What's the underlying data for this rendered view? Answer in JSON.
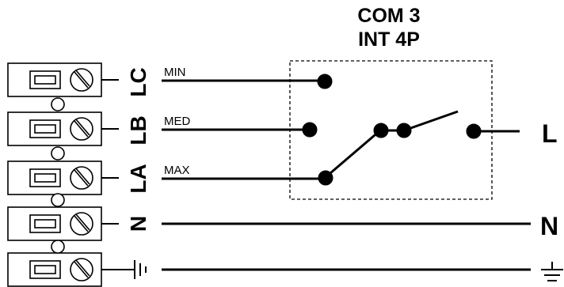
{
  "title": {
    "line1": "COM 3",
    "line2": "INT 4P"
  },
  "terminals": [
    {
      "label": "LC",
      "speed": "MIN"
    },
    {
      "label": "LB",
      "speed": "MED"
    },
    {
      "label": "LA",
      "speed": "MAX"
    },
    {
      "label": "N"
    },
    {
      "label": ""
    }
  ],
  "outputs": {
    "line": "L",
    "neutral": "N"
  },
  "icons": {
    "earth_left": "earth-terminal-icon",
    "earth_right": "ground-icon"
  },
  "colors": {
    "ink": "#000000",
    "background": "#ffffff"
  }
}
